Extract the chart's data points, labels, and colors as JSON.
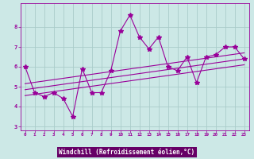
{
  "x": [
    0,
    1,
    2,
    3,
    4,
    5,
    6,
    7,
    8,
    9,
    10,
    11,
    12,
    13,
    14,
    15,
    16,
    17,
    18,
    19,
    20,
    21,
    22,
    23
  ],
  "y": [
    6.0,
    4.7,
    4.5,
    4.7,
    4.4,
    3.5,
    5.9,
    4.7,
    4.7,
    5.8,
    7.8,
    8.6,
    7.5,
    6.9,
    7.5,
    6.0,
    5.8,
    6.5,
    5.2,
    6.5,
    6.6,
    7.0,
    7.0,
    6.4
  ],
  "trend_line": [
    [
      0,
      4.85
    ],
    [
      23,
      6.4
    ]
  ],
  "upper_line": [
    [
      0,
      5.15
    ],
    [
      23,
      6.7
    ]
  ],
  "lower_line": [
    [
      0,
      4.55
    ],
    [
      23,
      6.1
    ]
  ],
  "line_color": "#990099",
  "bg_color": "#cce8e6",
  "grid_color": "#aaccca",
  "label_bg_color": "#660066",
  "label_text_color": "#ffffff",
  "xlabel": "Windchill (Refroidissement éolien,°C)",
  "ylabel_ticks": [
    3,
    4,
    5,
    6,
    7,
    8
  ],
  "ytop": 9.2,
  "ybot": 2.8,
  "marker": "*",
  "marker_size": 4,
  "line_width": 0.8
}
